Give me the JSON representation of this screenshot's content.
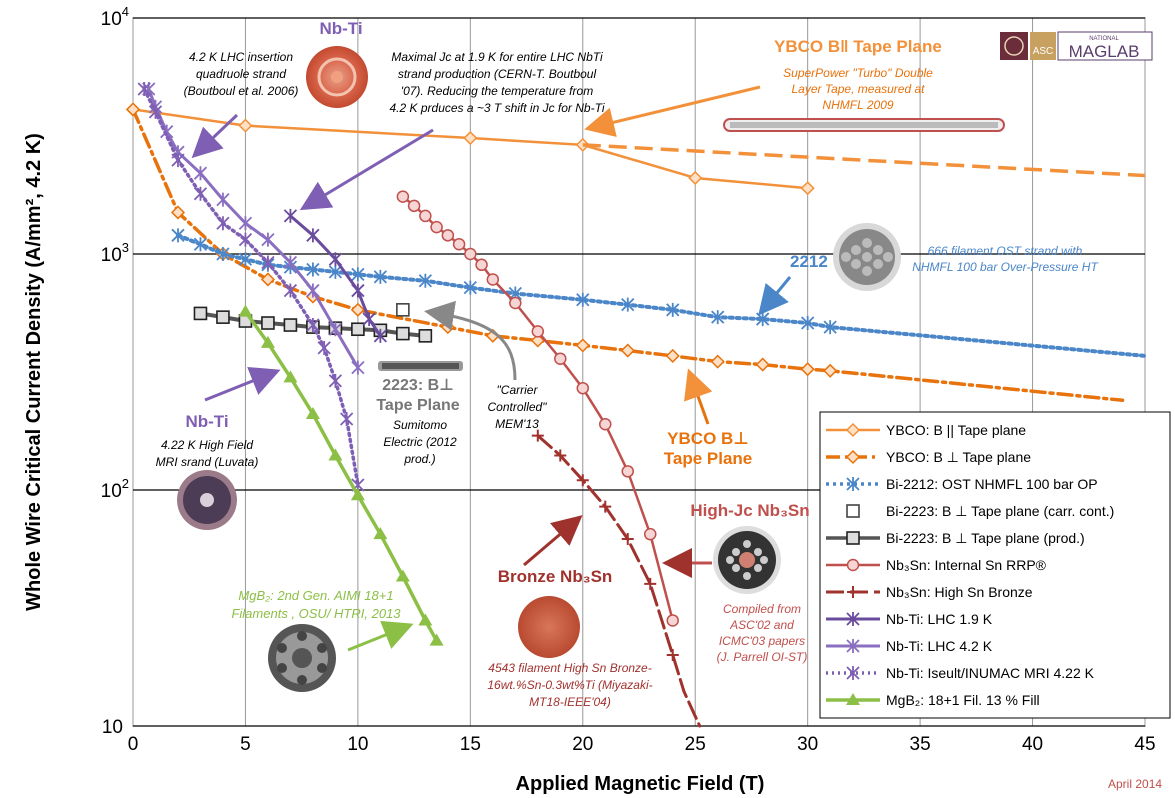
{
  "chart_data": {
    "type": "line",
    "xlabel": "Applied Magnetic Field (T)",
    "ylabel": "Whole Wire Critical Current Density (A/mm², 4.2 K)",
    "xlim": [
      0,
      45
    ],
    "ylim": [
      10,
      10000
    ],
    "yscale": "log",
    "x_ticks": [
      "0",
      "5",
      "10",
      "15",
      "20",
      "25",
      "30",
      "35",
      "40",
      "45"
    ],
    "y_ticks": [
      {
        "value": 10,
        "base": "10",
        "exp": ""
      },
      {
        "value": 100,
        "base": "10",
        "exp": "2"
      },
      {
        "value": 1000,
        "base": "10",
        "exp": "3"
      },
      {
        "value": 10000,
        "base": "10",
        "exp": "4"
      }
    ],
    "grid": "major",
    "legend_position": "bottom-right",
    "date_note": "April 2014",
    "series": [
      {
        "name": "YBCO: B || Tape plane",
        "color": "#f2913a",
        "dash": "",
        "width": 2.5,
        "marker": "diamond",
        "x": [
          0,
          5,
          15,
          20,
          25,
          30
        ],
        "y": [
          4100,
          3500,
          3100,
          2900,
          2100,
          1900
        ]
      },
      {
        "name": "YBCO: B ⊥ Tape plane",
        "color": "#e8720c",
        "dash": "14,5,3,5",
        "width": 3.5,
        "marker": "diamond",
        "x": [
          0,
          2,
          4,
          6,
          8,
          10,
          14,
          16,
          18,
          20,
          22,
          24,
          26,
          28,
          30,
          31,
          44
        ],
        "y": [
          4100,
          1500,
          1000,
          780,
          660,
          580,
          490,
          450,
          430,
          410,
          390,
          370,
          350,
          340,
          325,
          320,
          240
        ]
      },
      {
        "name": "Bi-2212: OST NHMFL 100 bar OP",
        "color": "#4a86c8",
        "dash": "3,4",
        "width": 4,
        "marker": "x",
        "x": [
          2,
          3,
          4,
          5,
          6,
          7,
          8,
          9,
          10,
          11,
          13,
          15,
          17,
          20,
          22,
          24,
          26,
          28,
          30,
          31,
          45
        ],
        "y": [
          1200,
          1100,
          1000,
          950,
          900,
          880,
          860,
          840,
          820,
          800,
          770,
          720,
          680,
          640,
          610,
          580,
          540,
          530,
          510,
          490,
          370
        ]
      },
      {
        "name": "Bi-2223: B ⊥ Tape plane (carr. cont.)",
        "color": "#777777",
        "dash": "",
        "width": 0,
        "marker": "square-open",
        "x": [
          12
        ],
        "y": [
          580
        ]
      },
      {
        "name": "Bi-2223: B ⊥ Tape plane (prod.)",
        "color": "#555555",
        "dash": "",
        "width": 4,
        "marker": "square",
        "x": [
          3,
          4,
          5,
          6,
          7,
          8,
          9,
          10,
          11,
          12,
          13
        ],
        "y": [
          560,
          540,
          520,
          510,
          500,
          490,
          485,
          480,
          475,
          460,
          450
        ]
      },
      {
        "name": "Nb₃Sn: Internal Sn RRP®",
        "color": "#c0504d",
        "dash": "",
        "width": 2.5,
        "marker": "circle",
        "x": [
          12,
          12.5,
          13,
          13.5,
          14,
          14.5,
          15,
          15.5,
          16,
          17,
          18,
          19,
          20,
          21,
          22,
          23,
          24
        ],
        "y": [
          1750,
          1600,
          1450,
          1300,
          1200,
          1100,
          1000,
          900,
          780,
          620,
          470,
          360,
          270,
          190,
          120,
          65,
          28
        ]
      },
      {
        "name": "Nb₃Sn: High Sn Bronze",
        "color": "#a0322e",
        "dash": "18,6",
        "width": 3,
        "marker": "plus",
        "x": [
          18,
          19,
          20,
          21,
          22,
          23,
          24,
          24.5,
          25.2
        ],
        "y": [
          170,
          140,
          110,
          85,
          62,
          40,
          20,
          14,
          10
        ]
      },
      {
        "name": "Nb-Ti: LHC 1.9 K",
        "color": "#6a4c9c",
        "dash": "",
        "width": 3,
        "marker": "x",
        "x": [
          7,
          8,
          9,
          10,
          10.5,
          11
        ],
        "y": [
          1450,
          1200,
          950,
          700,
          530,
          450
        ]
      },
      {
        "name": "Nb-Ti: LHC 4.2 K",
        "color": "#8a6ec0",
        "dash": "",
        "width": 3,
        "marker": "x",
        "x": [
          0.7,
          1,
          1.5,
          2,
          3,
          4,
          5,
          6,
          7,
          8,
          9,
          10
        ],
        "y": [
          5000,
          4200,
          3300,
          2700,
          2200,
          1700,
          1350,
          1150,
          920,
          700,
          480,
          330
        ]
      },
      {
        "name": "Nb-Ti: Iseult/INUMAC MRI 4.22 K",
        "color": "#7f5fb3",
        "dash": "2,4",
        "width": 3.5,
        "marker": "x",
        "x": [
          0.5,
          1,
          2,
          3,
          4,
          5,
          6,
          7,
          8,
          8.5,
          9,
          9.5,
          10
        ],
        "y": [
          5000,
          4000,
          2500,
          1800,
          1350,
          1150,
          920,
          700,
          500,
          400,
          290,
          200,
          105
        ]
      },
      {
        "name": "MgB₂: 18+1 Fil. 13 % Fill",
        "color": "#8cbf45",
        "dash": "",
        "width": 3.5,
        "marker": "triangle",
        "x": [
          5,
          6,
          7,
          8,
          9,
          10,
          11,
          12,
          13,
          13.5
        ],
        "y": [
          570,
          420,
          300,
          210,
          140,
          95,
          65,
          43,
          28,
          23
        ]
      }
    ],
    "annotations": [
      {
        "id": "ybco-par-title",
        "text": "YBCO B‖ Tape Plane",
        "color": "#f2913a",
        "bold": true,
        "italic": false,
        "size": 17
      },
      {
        "id": "ybco-par-note-1",
        "text": "SuperPower \"Turbo\" Double",
        "color": "#e8720c",
        "size": 12
      },
      {
        "id": "ybco-par-note-2",
        "text": "Layer Tape, measured at",
        "color": "#e8720c",
        "size": 12
      },
      {
        "id": "ybco-par-note-3",
        "text": "NHMFL 2009",
        "color": "#e8720c",
        "size": 12
      },
      {
        "id": "nbti-top-title",
        "text": "Nb-Ti",
        "color": "#7f5fb3",
        "bold": true,
        "italic": false,
        "size": 17
      },
      {
        "id": "lhc-note-1",
        "text": "4.2 K LHC insertion",
        "color": "#000",
        "size": 12
      },
      {
        "id": "lhc-note-2",
        "text": "quadruole strand",
        "color": "#000",
        "size": 12
      },
      {
        "id": "lhc-note-3",
        "text": "(Boutboul et al. 2006)",
        "color": "#000",
        "size": 12
      },
      {
        "id": "max-jc-1",
        "text": "Maximal Jc at 1.9 K for entire LHC NbTi",
        "color": "#000",
        "size": 12
      },
      {
        "id": "max-jc-2",
        "text": "strand production (CERN-T. Boutboul",
        "color": "#000",
        "size": 12
      },
      {
        "id": "max-jc-3",
        "text": "'07). Reducing the temperature from",
        "color": "#000",
        "size": 12
      },
      {
        "id": "max-jc-4",
        "text": "4.2 K prduces a ~3 T shift in Jc for Nb-Ti",
        "color": "#000",
        "size": 12
      },
      {
        "id": "bi2212-label",
        "text": "2212",
        "color": "#4a86c8",
        "bold": true,
        "italic": false,
        "size": 17
      },
      {
        "id": "bi2212-note-1",
        "text": "666 filament OST strand with",
        "color": "#4a86c8",
        "size": 12
      },
      {
        "id": "bi2212-note-2",
        "text": "NHMFL 100 bar Over-Pressure HT",
        "color": "#4a86c8",
        "size": 12
      },
      {
        "id": "bi2223-label-1",
        "text": "2223: B⊥",
        "color": "#777",
        "bold": true,
        "italic": false,
        "size": 16
      },
      {
        "id": "bi2223-label-2",
        "text": "Tape Plane",
        "color": "#777",
        "bold": true,
        "italic": false,
        "size": 16
      },
      {
        "id": "bi2223-note-1",
        "text": "Sumitomo",
        "color": "#000",
        "size": 12
      },
      {
        "id": "bi2223-note-2",
        "text": "Electric (2012",
        "color": "#000",
        "size": 12
      },
      {
        "id": "bi2223-note-3",
        "text": "prod.)",
        "color": "#000",
        "size": 12
      },
      {
        "id": "carrier-1",
        "text": "\"Carrier",
        "color": "#000",
        "size": 12
      },
      {
        "id": "carrier-2",
        "text": "Controlled\"",
        "color": "#000",
        "size": 12
      },
      {
        "id": "carrier-3",
        "text": "MEM'13",
        "color": "#000",
        "size": 12
      },
      {
        "id": "ybco-perp-1",
        "text": "YBCO B⊥",
        "color": "#e8720c",
        "bold": true,
        "italic": false,
        "size": 17
      },
      {
        "id": "ybco-perp-2",
        "text": "Tape Plane",
        "color": "#e8720c",
        "bold": true,
        "italic": false,
        "size": 17
      },
      {
        "id": "nbti-mri-title",
        "text": "Nb-Ti",
        "color": "#7f5fb3",
        "bold": true,
        "italic": false,
        "size": 17
      },
      {
        "id": "nbti-mri-1",
        "text": "4.22 K High Field",
        "color": "#000",
        "size": 12
      },
      {
        "id": "nbti-mri-2",
        "text": "MRI srand (Luvata)",
        "color": "#000",
        "size": 12
      },
      {
        "id": "mgb2-1",
        "text": "MgB₂: 2nd Gen. AIMI 18+1",
        "color": "#8cbf45",
        "size": 13
      },
      {
        "id": "mgb2-2",
        "text": "Filaments , OSU/ HTRI, 2013",
        "color": "#8cbf45",
        "size": 13
      },
      {
        "id": "bronze-title",
        "text": "Bronze Nb₃Sn",
        "color": "#a0322e",
        "bold": true,
        "italic": false,
        "size": 17
      },
      {
        "id": "bronze-1",
        "text": "4543 filament High Sn Bronze-",
        "color": "#a0322e",
        "size": 12
      },
      {
        "id": "bronze-2",
        "text": "16wt.%Sn-0.3wt%Ti (Miyazaki-",
        "color": "#a0322e",
        "size": 12
      },
      {
        "id": "bronze-3",
        "text": "MT18-IEEE'04)",
        "color": "#a0322e",
        "size": 12
      },
      {
        "id": "highjc-title",
        "text": "High-Jc Nb₃Sn",
        "color": "#c0504d",
        "bold": true,
        "italic": false,
        "size": 17
      },
      {
        "id": "compiled-1",
        "text": "Compiled from",
        "color": "#c0504d",
        "size": 12
      },
      {
        "id": "compiled-2",
        "text": "ASC'02 and",
        "color": "#c0504d",
        "size": 12
      },
      {
        "id": "compiled-3",
        "text": "ICMC'03 papers",
        "color": "#c0504d",
        "size": 12
      },
      {
        "id": "compiled-4",
        "text": "(J. Parrell OI-ST)",
        "color": "#c0504d",
        "size": 12
      }
    ],
    "logo": {
      "text": "MAGLAB",
      "small": "NATIONAL",
      "asc": "ASC"
    }
  }
}
